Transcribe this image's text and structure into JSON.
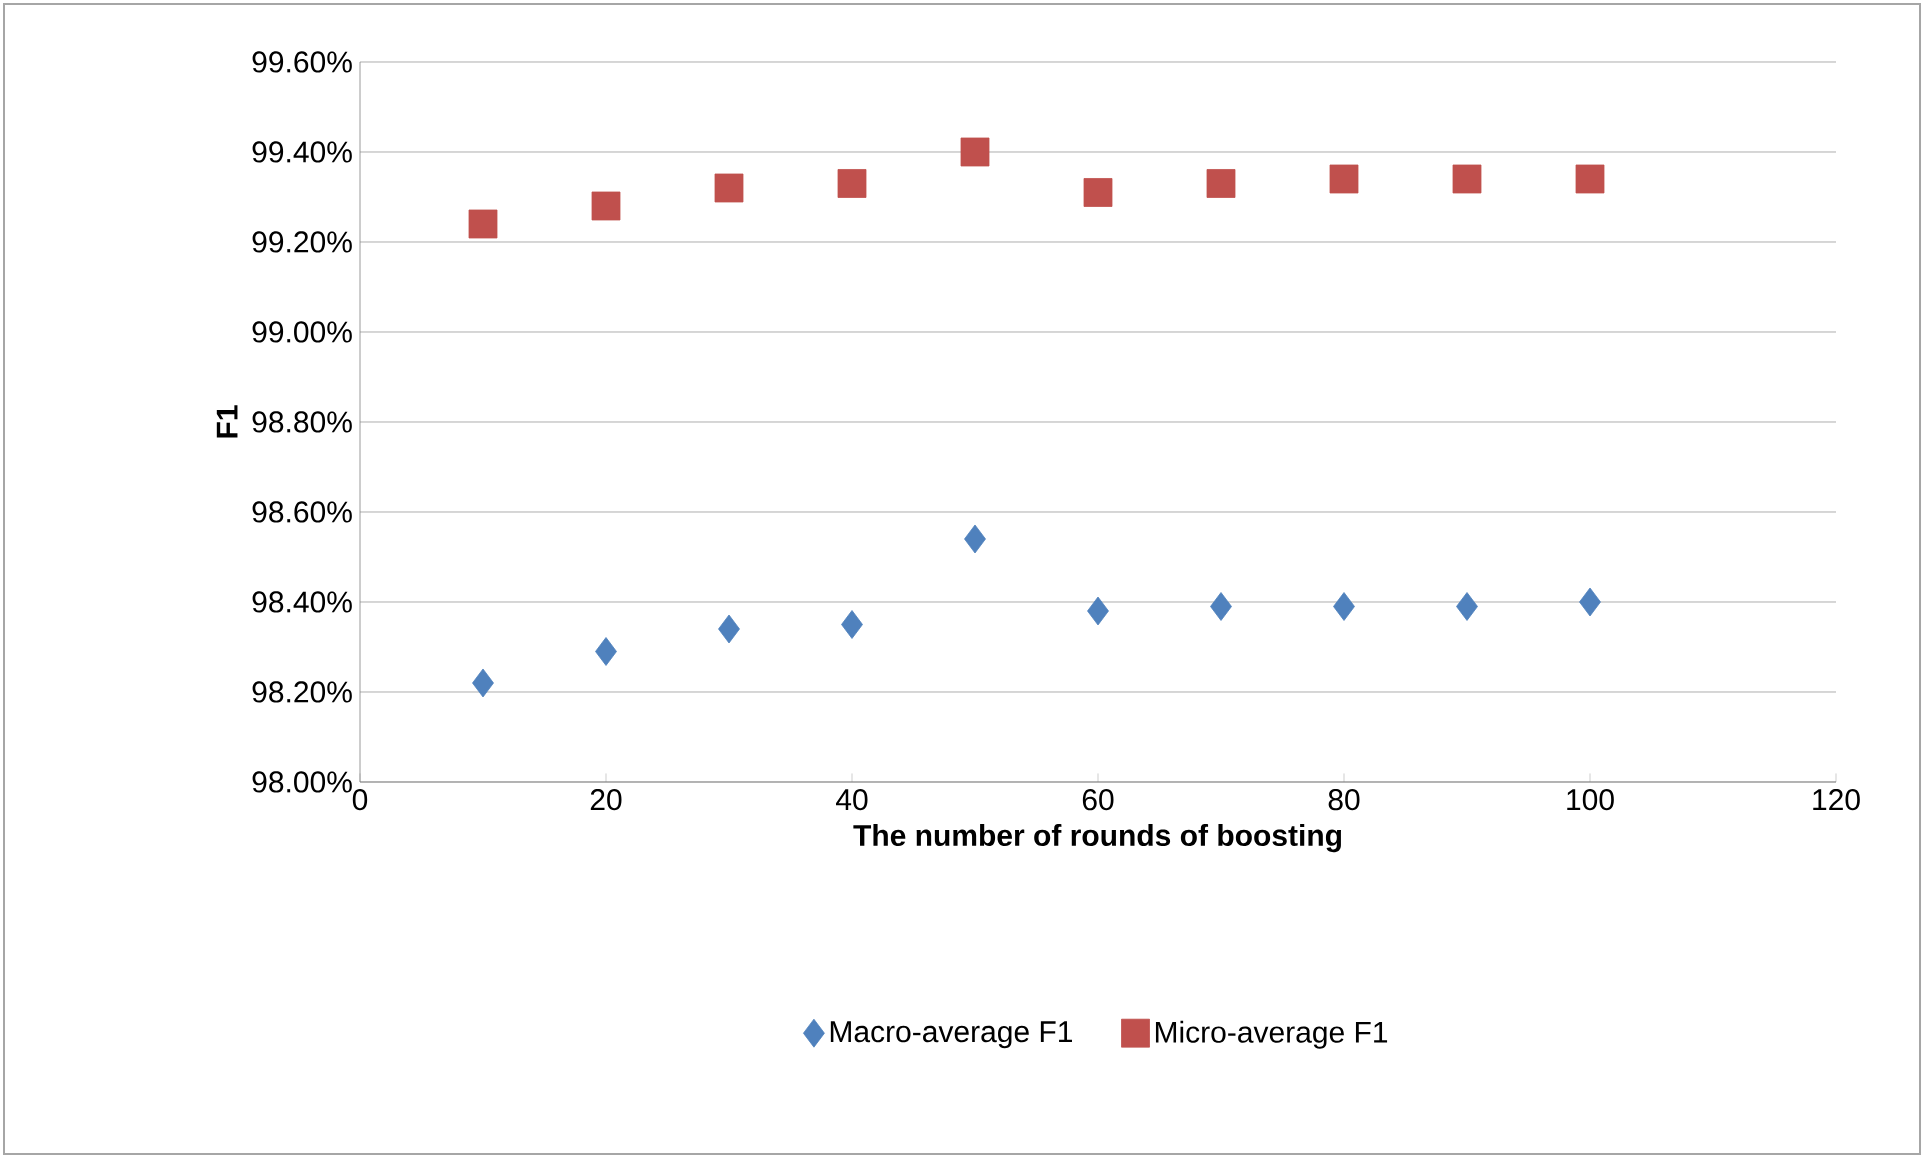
{
  "chart_data": {
    "type": "scatter",
    "xlabel": "The number of rounds of boosting",
    "ylabel": "F1",
    "x": [
      10,
      20,
      30,
      40,
      50,
      60,
      70,
      80,
      90,
      100
    ],
    "series": [
      {
        "name": "Macro-average F1",
        "color": "#4f81bd",
        "marker": "diamond",
        "values": [
          98.22,
          98.29,
          98.34,
          98.35,
          98.54,
          98.38,
          98.39,
          98.39,
          98.39,
          98.4
        ]
      },
      {
        "name": "Micro-average F1",
        "color": "#c0504d",
        "marker": "square",
        "values": [
          99.24,
          99.28,
          99.32,
          99.33,
          99.4,
          99.31,
          99.33,
          99.34,
          99.34,
          99.34
        ]
      }
    ],
    "xlim": [
      0,
      120
    ],
    "xticks": [
      0,
      20,
      40,
      60,
      80,
      100,
      120
    ],
    "ylim": [
      98.0,
      99.6
    ],
    "yticks": [
      {
        "value": 98.0,
        "label": "98.00%"
      },
      {
        "value": 98.2,
        "label": "98.20%"
      },
      {
        "value": 98.4,
        "label": "98.40%"
      },
      {
        "value": 98.6,
        "label": "98.60%"
      },
      {
        "value": 98.8,
        "label": "98.80%"
      },
      {
        "value": 99.0,
        "label": "99.00%"
      },
      {
        "value": 99.2,
        "label": "99.20%"
      },
      {
        "value": 99.4,
        "label": "99.40%"
      },
      {
        "value": 99.6,
        "label": "99.60%"
      }
    ],
    "grid": "y",
    "legend": "bottom"
  }
}
